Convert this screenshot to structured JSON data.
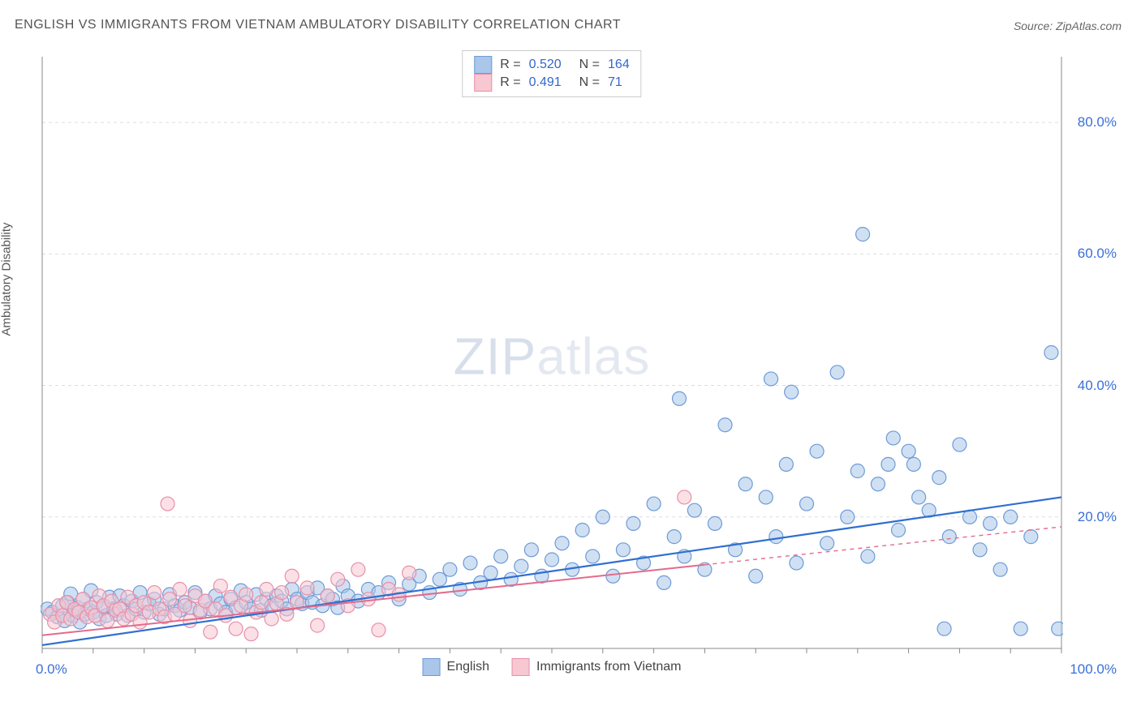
{
  "title": "ENGLISH VS IMMIGRANTS FROM VIETNAM AMBULATORY DISABILITY CORRELATION CHART",
  "source": "Source: ZipAtlas.com",
  "ylabel": "Ambulatory Disability",
  "watermark": {
    "bold": "ZIP",
    "rest": "atlas"
  },
  "chart": {
    "type": "scatter",
    "xlim": [
      0,
      100
    ],
    "ylim": [
      0,
      90
    ],
    "xtick_start": 0,
    "xtick_end": 100,
    "xtick_label_left": "0.0%",
    "xtick_label_right": "100.0%",
    "ytick_positions": [
      20,
      40,
      60,
      80
    ],
    "ytick_labels": [
      "20.0%",
      "40.0%",
      "60.0%",
      "80.0%"
    ],
    "minor_xtick_step": 5,
    "gridline_color": "#dddddd",
    "axis_color": "#888888",
    "background_color": "#ffffff",
    "marker_radius": 8.5,
    "marker_stroke_width": 1.2,
    "series": [
      {
        "name": "English",
        "fill": "#aac6ea",
        "stroke": "#6d9bd6",
        "fill_opacity": 0.55,
        "trend": {
          "slope": 0.225,
          "intercept": 0.5,
          "color": "#2f6fd0",
          "width": 2.2,
          "x0": 0,
          "x1": 100
        },
        "points": [
          [
            0.5,
            6
          ],
          [
            1,
            5.5
          ],
          [
            1.5,
            4.8
          ],
          [
            2,
            6.5
          ],
          [
            2.2,
            4.2
          ],
          [
            2.5,
            7
          ],
          [
            2.8,
            8.3
          ],
          [
            3,
            5
          ],
          [
            3.2,
            5.8
          ],
          [
            3.5,
            6.2
          ],
          [
            3.7,
            4
          ],
          [
            4,
            7.5
          ],
          [
            4.2,
            5.2
          ],
          [
            4.5,
            6
          ],
          [
            4.8,
            8.8
          ],
          [
            5,
            5.5
          ],
          [
            5.3,
            7
          ],
          [
            5.6,
            4.5
          ],
          [
            6,
            6.3
          ],
          [
            6.3,
            5
          ],
          [
            6.6,
            7.8
          ],
          [
            7,
            6
          ],
          [
            7.3,
            5.2
          ],
          [
            7.6,
            8
          ],
          [
            8,
            6.5
          ],
          [
            8.4,
            5
          ],
          [
            8.8,
            7.2
          ],
          [
            9.2,
            6
          ],
          [
            9.6,
            8.5
          ],
          [
            10,
            5.5
          ],
          [
            10.5,
            6.8
          ],
          [
            11,
            7.5
          ],
          [
            11.5,
            5.2
          ],
          [
            12,
            6
          ],
          [
            12.5,
            8.2
          ],
          [
            13,
            6.5
          ],
          [
            13.5,
            5.8
          ],
          [
            14,
            7
          ],
          [
            14.5,
            6.2
          ],
          [
            15,
            8.5
          ],
          [
            15.5,
            5.5
          ],
          [
            16,
            7.2
          ],
          [
            16.5,
            6
          ],
          [
            17,
            8
          ],
          [
            17.5,
            6.8
          ],
          [
            18,
            5.5
          ],
          [
            18.5,
            7.5
          ],
          [
            19,
            6.2
          ],
          [
            19.5,
            8.8
          ],
          [
            20,
            7
          ],
          [
            20.5,
            6
          ],
          [
            21,
            8.2
          ],
          [
            21.5,
            5.8
          ],
          [
            22,
            7.5
          ],
          [
            22.5,
            6.5
          ],
          [
            23,
            8
          ],
          [
            23.5,
            7.2
          ],
          [
            24,
            6
          ],
          [
            24.5,
            9
          ],
          [
            25,
            7.5
          ],
          [
            25.5,
            6.8
          ],
          [
            26,
            8.5
          ],
          [
            26.5,
            7
          ],
          [
            27,
            9.2
          ],
          [
            27.5,
            6.5
          ],
          [
            28,
            8
          ],
          [
            28.5,
            7.5
          ],
          [
            29,
            6.2
          ],
          [
            29.5,
            9.5
          ],
          [
            30,
            8
          ],
          [
            31,
            7.2
          ],
          [
            32,
            9
          ],
          [
            33,
            8.5
          ],
          [
            34,
            10
          ],
          [
            35,
            7.5
          ],
          [
            36,
            9.8
          ],
          [
            37,
            11
          ],
          [
            38,
            8.5
          ],
          [
            39,
            10.5
          ],
          [
            40,
            12
          ],
          [
            41,
            9
          ],
          [
            42,
            13
          ],
          [
            43,
            10
          ],
          [
            44,
            11.5
          ],
          [
            45,
            14
          ],
          [
            46,
            10.5
          ],
          [
            47,
            12.5
          ],
          [
            48,
            15
          ],
          [
            49,
            11
          ],
          [
            50,
            13.5
          ],
          [
            51,
            16
          ],
          [
            52,
            12
          ],
          [
            53,
            18
          ],
          [
            54,
            14
          ],
          [
            55,
            20
          ],
          [
            56,
            11
          ],
          [
            57,
            15
          ],
          [
            58,
            19
          ],
          [
            59,
            13
          ],
          [
            60,
            22
          ],
          [
            61,
            10
          ],
          [
            62,
            17
          ],
          [
            62.5,
            38
          ],
          [
            63,
            14
          ],
          [
            64,
            21
          ],
          [
            65,
            12
          ],
          [
            66,
            19
          ],
          [
            67,
            34
          ],
          [
            68,
            15
          ],
          [
            69,
            25
          ],
          [
            70,
            11
          ],
          [
            71,
            23
          ],
          [
            71.5,
            41
          ],
          [
            72,
            17
          ],
          [
            73,
            28
          ],
          [
            73.5,
            39
          ],
          [
            74,
            13
          ],
          [
            75,
            22
          ],
          [
            76,
            30
          ],
          [
            77,
            16
          ],
          [
            78,
            42
          ],
          [
            79,
            20
          ],
          [
            80,
            27
          ],
          [
            80.5,
            63
          ],
          [
            81,
            14
          ],
          [
            82,
            25
          ],
          [
            83,
            28
          ],
          [
            83.5,
            32
          ],
          [
            84,
            18
          ],
          [
            85,
            30
          ],
          [
            85.5,
            28
          ],
          [
            86,
            23
          ],
          [
            87,
            21
          ],
          [
            88,
            26
          ],
          [
            88.5,
            3
          ],
          [
            89,
            17
          ],
          [
            90,
            31
          ],
          [
            91,
            20
          ],
          [
            92,
            15
          ],
          [
            93,
            19
          ],
          [
            94,
            12
          ],
          [
            95,
            20
          ],
          [
            96,
            3
          ],
          [
            97,
            17
          ],
          [
            99,
            45
          ],
          [
            99.7,
            3
          ]
        ]
      },
      {
        "name": "Immigrants from Vietnam",
        "fill": "#f7c7d2",
        "stroke": "#e790a9",
        "fill_opacity": 0.55,
        "trend": {
          "slope": 0.165,
          "intercept": 2,
          "color": "#e36b8c",
          "width": 2,
          "x0": 0,
          "x1": 65,
          "dash_extend_to": 100
        },
        "points": [
          [
            0.8,
            5.2
          ],
          [
            1.2,
            4
          ],
          [
            1.6,
            6.5
          ],
          [
            2,
            5
          ],
          [
            2.4,
            7
          ],
          [
            2.8,
            4.5
          ],
          [
            3.2,
            6
          ],
          [
            3.6,
            5.5
          ],
          [
            4,
            7.5
          ],
          [
            4.4,
            4.8
          ],
          [
            4.8,
            6.2
          ],
          [
            5.2,
            5
          ],
          [
            5.6,
            8
          ],
          [
            6,
            6.5
          ],
          [
            6.4,
            4.2
          ],
          [
            6.8,
            7.2
          ],
          [
            7.2,
            5.8
          ],
          [
            7.6,
            6
          ],
          [
            8,
            4.5
          ],
          [
            8.4,
            7.8
          ],
          [
            8.8,
            5.2
          ],
          [
            9.2,
            6.5
          ],
          [
            9.6,
            4
          ],
          [
            10,
            7
          ],
          [
            10.5,
            5.5
          ],
          [
            11,
            8.5
          ],
          [
            11.5,
            6
          ],
          [
            12,
            4.8
          ],
          [
            12.3,
            22
          ],
          [
            12.5,
            7.5
          ],
          [
            13,
            5.2
          ],
          [
            13.5,
            9
          ],
          [
            14,
            6.5
          ],
          [
            14.5,
            4.2
          ],
          [
            15,
            8
          ],
          [
            15.5,
            5.8
          ],
          [
            16,
            7.2
          ],
          [
            16.5,
            2.5
          ],
          [
            17,
            6
          ],
          [
            17.5,
            9.5
          ],
          [
            18,
            5
          ],
          [
            18.5,
            7.8
          ],
          [
            19,
            3
          ],
          [
            19.5,
            6.5
          ],
          [
            20,
            8.2
          ],
          [
            20.5,
            2.2
          ],
          [
            21,
            5.5
          ],
          [
            21.5,
            7
          ],
          [
            22,
            9
          ],
          [
            22.5,
            4.5
          ],
          [
            23,
            6.8
          ],
          [
            23.5,
            8.5
          ],
          [
            24,
            5.2
          ],
          [
            24.5,
            11
          ],
          [
            25,
            7
          ],
          [
            26,
            9.2
          ],
          [
            27,
            3.5
          ],
          [
            28,
            8
          ],
          [
            29,
            10.5
          ],
          [
            30,
            6.5
          ],
          [
            31,
            12
          ],
          [
            32,
            7.5
          ],
          [
            33,
            2.8
          ],
          [
            34,
            9
          ],
          [
            35,
            8.2
          ],
          [
            36,
            11.5
          ],
          [
            63,
            23
          ]
        ]
      }
    ],
    "legend_top": [
      {
        "swatch_fill": "#aac6ea",
        "swatch_stroke": "#6d9bd6",
        "r_label": "R =",
        "r_value": "0.520",
        "n_label": "N =",
        "n_value": "164"
      },
      {
        "swatch_fill": "#f7c7d2",
        "swatch_stroke": "#e790a9",
        "r_label": "R =",
        "r_value": "0.491",
        "n_label": "N =",
        "n_value": "71"
      }
    ],
    "legend_bottom": [
      {
        "swatch_fill": "#aac6ea",
        "swatch_stroke": "#6d9bd6",
        "label": "English"
      },
      {
        "swatch_fill": "#f7c7d2",
        "swatch_stroke": "#e790a9",
        "label": "Immigrants from Vietnam"
      }
    ]
  }
}
